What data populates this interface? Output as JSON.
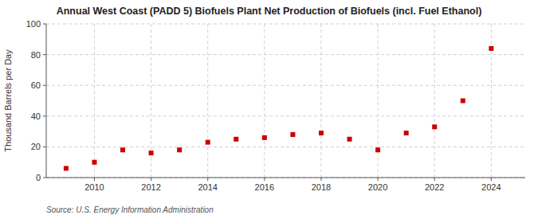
{
  "chart_data": {
    "type": "scatter",
    "title": "Annual West Coast (PADD 5) Biofuels Plant Net Production of Biofuels (incl. Fuel Ethanol)",
    "ylabel": "Thousand Barrels per Day",
    "source": "Source: U.S. Energy Information Administration",
    "x": [
      2009,
      2010,
      2011,
      2012,
      2013,
      2014,
      2015,
      2016,
      2017,
      2018,
      2019,
      2020,
      2021,
      2022,
      2023,
      2024
    ],
    "values": [
      6,
      10,
      18,
      16,
      18,
      23,
      25,
      26,
      28,
      29,
      25,
      18,
      29,
      33,
      50,
      84
    ],
    "color": "#cc0000",
    "marker": "square",
    "xlim": [
      2008.3,
      2025.2
    ],
    "xticks": [
      2010,
      2012,
      2014,
      2016,
      2018,
      2020,
      2022,
      2024
    ],
    "ylim": [
      0,
      100
    ],
    "yticks": [
      0,
      20,
      40,
      60,
      80,
      100
    ],
    "grid": true
  }
}
